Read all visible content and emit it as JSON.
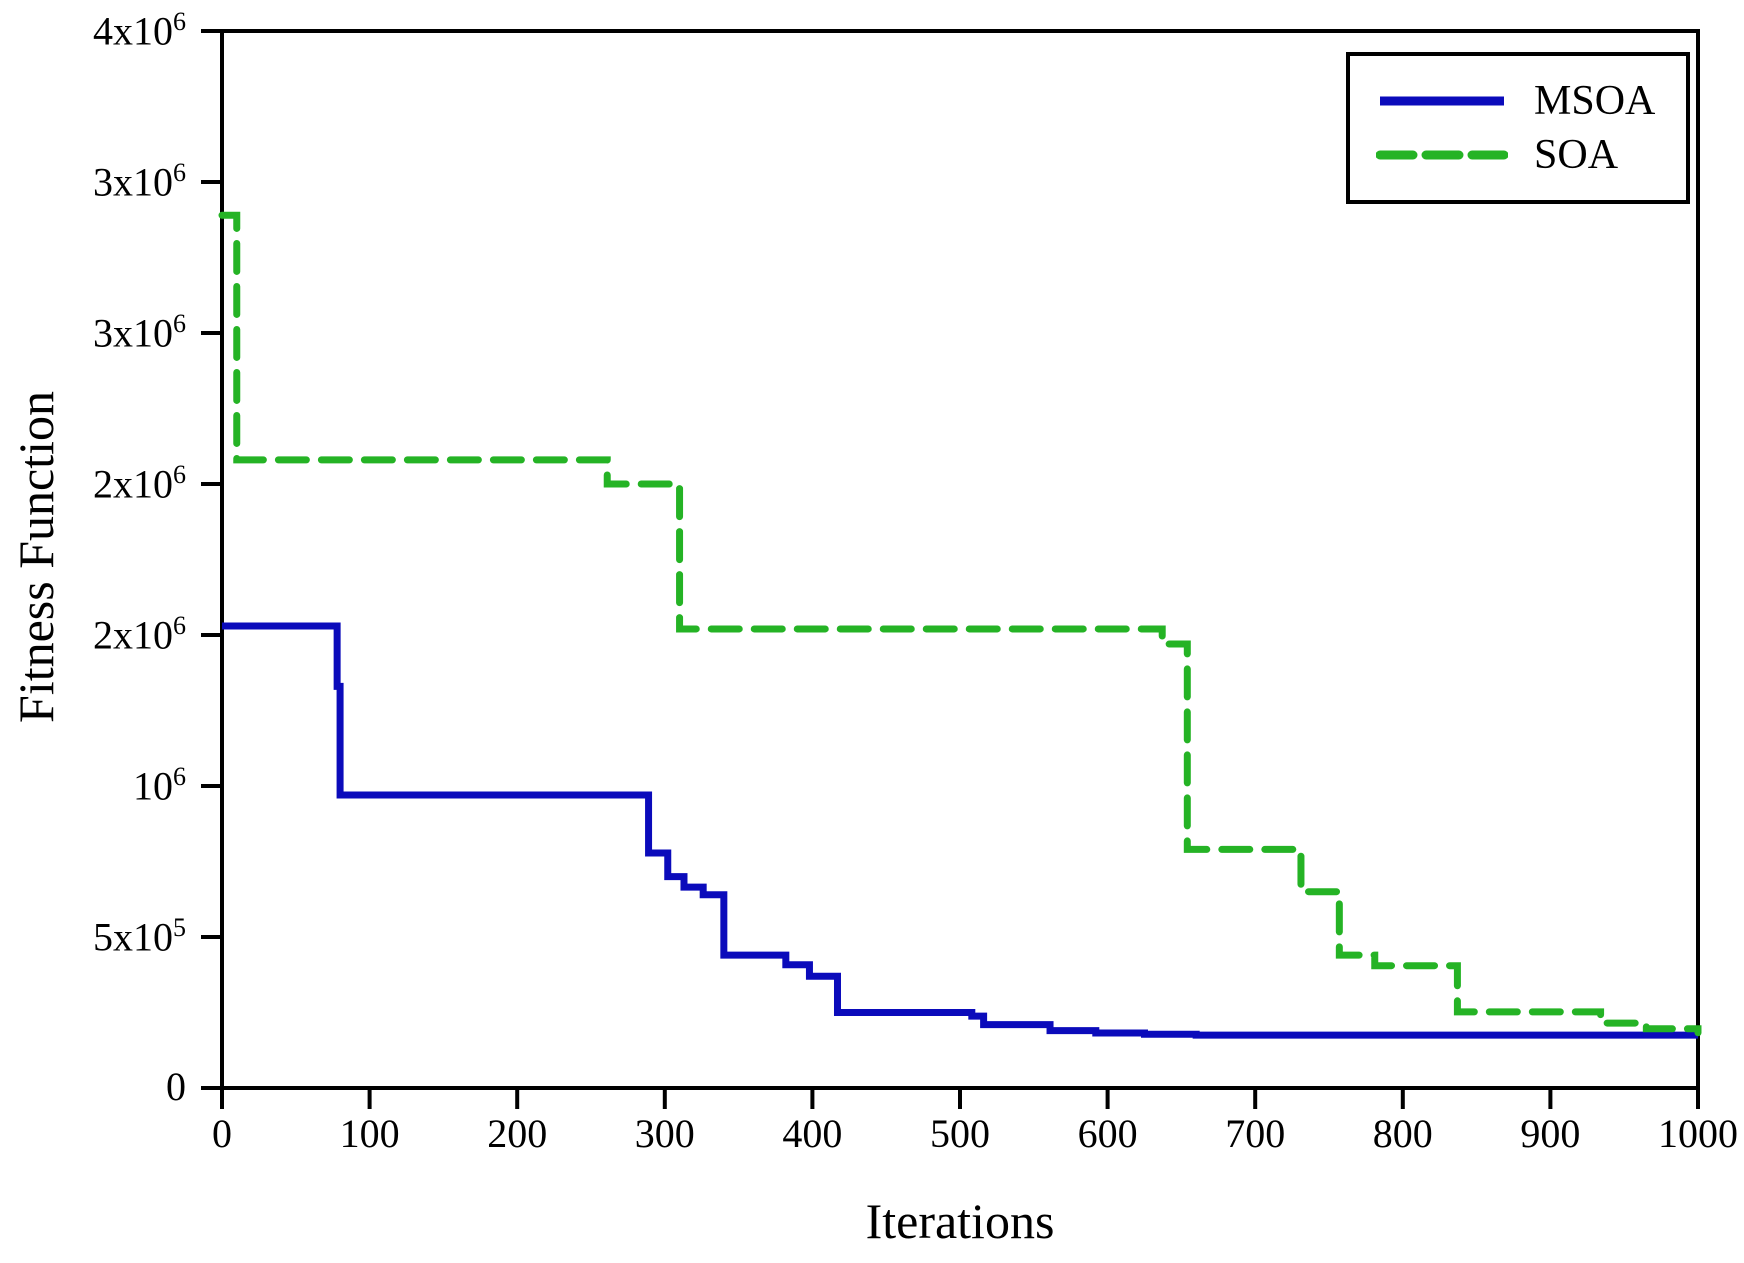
{
  "figure": {
    "background": "#ffffff",
    "axis_color": "#000000"
  },
  "axes": {
    "x_title": "Iterations",
    "y_title": "Fitness Function"
  },
  "chart_data": {
    "type": "line",
    "subtype": "step-after",
    "title": "",
    "xlabel": "Iterations",
    "ylabel": "Fitness Function",
    "xlim": [
      0,
      1000
    ],
    "ylim": [
      0,
      3500000
    ],
    "grid": false,
    "x_ticks": [
      {
        "value": 0,
        "label": "0"
      },
      {
        "value": 100,
        "label": "100"
      },
      {
        "value": 200,
        "label": "200"
      },
      {
        "value": 300,
        "label": "300"
      },
      {
        "value": 400,
        "label": "400"
      },
      {
        "value": 500,
        "label": "500"
      },
      {
        "value": 600,
        "label": "600"
      },
      {
        "value": 700,
        "label": "700"
      },
      {
        "value": 800,
        "label": "800"
      },
      {
        "value": 900,
        "label": "900"
      },
      {
        "value": 1000,
        "label": "1000"
      }
    ],
    "y_ticks": [
      {
        "value": 0,
        "base": "0",
        "sup": ""
      },
      {
        "value": 500000,
        "base": "5x10",
        "sup": "5"
      },
      {
        "value": 1000000,
        "base": "10",
        "sup": "6"
      },
      {
        "value": 1500000,
        "base": "2x10",
        "sup": "6"
      },
      {
        "value": 2000000,
        "base": "2x10",
        "sup": "6"
      },
      {
        "value": 2500000,
        "base": "3x10",
        "sup": "6"
      },
      {
        "value": 3000000,
        "base": "3x10",
        "sup": "6"
      },
      {
        "value": 3500000,
        "base": "4x10",
        "sup": "6"
      }
    ],
    "legend": {
      "position": "top-right",
      "entries": [
        {
          "label": "MSOA",
          "color": "#0b0bbb",
          "style": "solid"
        },
        {
          "label": "SOA",
          "color": "#25b325",
          "style": "dashed"
        }
      ]
    },
    "series": [
      {
        "name": "MSOA",
        "color": "#0b0bbb",
        "style": "solid",
        "step": "after",
        "points": [
          [
            0,
            1530000
          ],
          [
            78,
            1330000
          ],
          [
            80,
            970000
          ],
          [
            289,
            778000
          ],
          [
            302,
            700000
          ],
          [
            313,
            665000
          ],
          [
            326,
            640000
          ],
          [
            340,
            440000
          ],
          [
            382,
            408000
          ],
          [
            398,
            370000
          ],
          [
            417,
            250000
          ],
          [
            508,
            238000
          ],
          [
            516,
            210000
          ],
          [
            561,
            190000
          ],
          [
            592,
            182000
          ],
          [
            625,
            178000
          ],
          [
            660,
            175000
          ],
          [
            1000,
            175000
          ]
        ]
      },
      {
        "name": "SOA",
        "color": "#25b325",
        "style": "dashed",
        "step": "after",
        "points": [
          [
            0,
            2890000
          ],
          [
            10,
            2080000
          ],
          [
            261,
            2000000
          ],
          [
            310,
            1520000
          ],
          [
            637,
            1470000
          ],
          [
            654,
            790000
          ],
          [
            731,
            650000
          ],
          [
            757,
            440000
          ],
          [
            781,
            405000
          ],
          [
            837,
            252000
          ],
          [
            934,
            215000
          ],
          [
            965,
            196000
          ],
          [
            1000,
            183000
          ]
        ]
      }
    ]
  }
}
